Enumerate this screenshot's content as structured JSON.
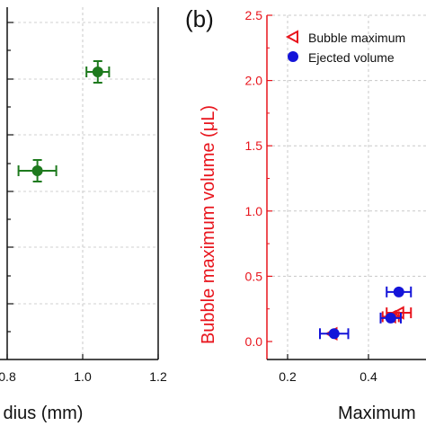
{
  "panel_label": "(b)",
  "chart_data": [
    {
      "type": "scatter",
      "panel": "a",
      "xlabel": "dius (mm)",
      "ylabel": "",
      "x_ticks": [
        0.8,
        1.0,
        1.2
      ],
      "xlim": [
        0.8,
        1.2
      ],
      "grid": true,
      "color": "#1e7a1e",
      "series": [
        {
          "points": [
            {
              "x": 0.88,
              "x_err": 0.05,
              "y_err": 0.18
            },
            {
              "x": 1.04,
              "x_err": 0.03,
              "y_err": 0.18
            }
          ]
        }
      ]
    },
    {
      "type": "scatter",
      "panel": "b",
      "xlabel": "Maximum",
      "ylabel": "Bubble maximum volume (μL)",
      "ylabel_color": "#e8141c",
      "x_ticks": [
        0.2,
        0.4
      ],
      "y_ticks": [
        0.0,
        0.5,
        1.0,
        1.5,
        2.0,
        2.5
      ],
      "y_tick_labels": [
        "0.0",
        "0.5",
        "1.0",
        "1.5",
        "2.0",
        "2.5"
      ],
      "xlim": [
        0.15,
        0.56
      ],
      "ylim": [
        -0.15,
        2.5
      ],
      "grid": true,
      "legend_position": "top-right",
      "series": [
        {
          "name": "Bubble maximum",
          "marker": "open-triangle-left",
          "color": "#e8141c",
          "points": [
            {
              "x": 0.31,
              "y": 0.06,
              "x_err": 0.0
            },
            {
              "x": 0.455,
              "y": 0.19,
              "x_err": 0.02
            },
            {
              "x": 0.475,
              "y": 0.22,
              "x_err": 0.03
            }
          ]
        },
        {
          "name": "Ejected volume",
          "marker": "filled-circle",
          "color": "#1414d9",
          "points": [
            {
              "x": 0.315,
              "y": 0.06,
              "x_err": 0.035
            },
            {
              "x": 0.455,
              "y": 0.18,
              "x_err": 0.025
            },
            {
              "x": 0.475,
              "y": 0.38,
              "x_err": 0.03
            }
          ]
        }
      ]
    }
  ]
}
